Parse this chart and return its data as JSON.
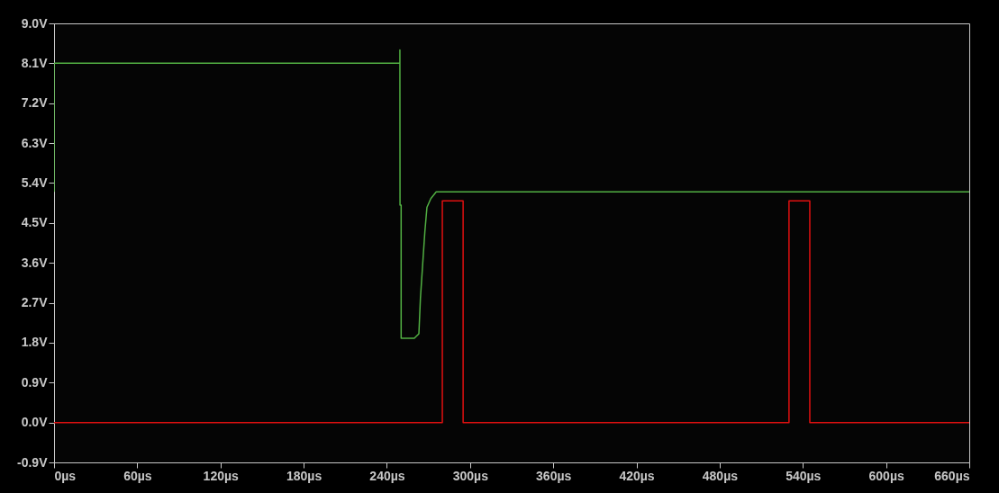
{
  "chart_data": {
    "type": "line",
    "xlim": [
      0,
      660
    ],
    "ylim": [
      -0.9,
      9.0
    ],
    "xticks": [
      {
        "value": 0,
        "label": "0µs"
      },
      {
        "value": 60,
        "label": "60µs"
      },
      {
        "value": 120,
        "label": "120µs"
      },
      {
        "value": 180,
        "label": "180µs"
      },
      {
        "value": 240,
        "label": "240µs"
      },
      {
        "value": 300,
        "label": "300µs"
      },
      {
        "value": 360,
        "label": "360µs"
      },
      {
        "value": 420,
        "label": "420µs"
      },
      {
        "value": 480,
        "label": "480µs"
      },
      {
        "value": 540,
        "label": "540µs"
      },
      {
        "value": 600,
        "label": "600µs"
      },
      {
        "value": 660,
        "label": "660µs"
      }
    ],
    "yticks": [
      {
        "value": -0.9,
        "label": "-0.9V"
      },
      {
        "value": 0,
        "label": "0.0V"
      },
      {
        "value": 0.9,
        "label": "0.9V"
      },
      {
        "value": 1.8,
        "label": "1.8V"
      },
      {
        "value": 2.7,
        "label": "2.7V"
      },
      {
        "value": 3.6,
        "label": "3.6V"
      },
      {
        "value": 4.5,
        "label": "4.5V"
      },
      {
        "value": 5.4,
        "label": "5.4V"
      },
      {
        "value": 6.3,
        "label": "6.3V"
      },
      {
        "value": 7.2,
        "label": "7.2V"
      },
      {
        "value": 8.1,
        "label": "8.1V"
      },
      {
        "value": 9.0,
        "label": "9.0V"
      }
    ],
    "grid": false,
    "legend": false,
    "marker": "none",
    "line_style": "solid",
    "series": [
      {
        "color": "#52b043",
        "x": [
          0,
          0,
          249.4,
          249.4,
          249.5,
          250.3,
          250.3,
          259.8,
          263.1,
          264.2,
          265.9,
          267.4,
          268.9,
          271.7,
          275.6,
          660
        ],
        "values": [
          5.2,
          8.1,
          8.1,
          8.4,
          4.9,
          4.9,
          1.9,
          1.9,
          2.0,
          2.8,
          3.6,
          4.3,
          4.85,
          5.05,
          5.2,
          5.2
        ]
      },
      {
        "color": "#e01010",
        "x": [
          0,
          280,
          280,
          295,
          295,
          530,
          530,
          545,
          545,
          660
        ],
        "values": [
          0,
          0,
          5.0,
          5.0,
          0,
          0,
          5.0,
          5.0,
          0,
          0
        ]
      }
    ]
  }
}
